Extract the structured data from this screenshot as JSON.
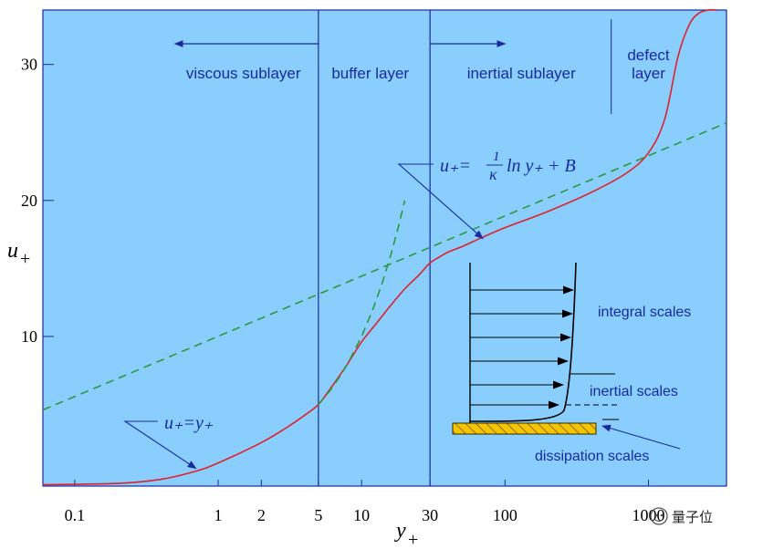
{
  "chart_data": {
    "type": "line",
    "title": "",
    "xlabel": "y+",
    "ylabel": "u+",
    "xscale": "log",
    "xlim": [
      0.06,
      3500
    ],
    "ylim": [
      -1,
      34
    ],
    "x_ticks": [
      {
        "value": 0.1,
        "label": "0.1"
      },
      {
        "value": 1,
        "label": "1"
      },
      {
        "value": 2,
        "label": "2"
      },
      {
        "value": 5,
        "label": "5"
      },
      {
        "value": 10,
        "label": "10"
      },
      {
        "value": 30,
        "label": "30"
      },
      {
        "value": 100,
        "label": "100"
      },
      {
        "value": 1000,
        "label": "1000"
      }
    ],
    "y_ticks": [
      {
        "value": 10,
        "label": "10"
      },
      {
        "value": 20,
        "label": "20"
      },
      {
        "value": 30,
        "label": "30"
      }
    ],
    "region_boundaries": [
      5,
      30
    ],
    "defect_boundary": 550,
    "regions": [
      {
        "name": "viscous sublayer",
        "x": 1.5
      },
      {
        "name": "buffer layer",
        "x": 11.5
      },
      {
        "name": "inertial sublayer",
        "x": 130
      },
      {
        "name": "defect",
        "x": 1000
      },
      {
        "name": "layer",
        "x": 1000
      }
    ],
    "series": [
      {
        "name": "velocity profile",
        "style": "solid",
        "color": "#e0202a",
        "x": [
          0.06,
          0.2,
          0.4,
          0.7,
          1,
          2,
          3,
          4,
          5,
          6,
          7,
          8,
          10,
          13,
          16,
          20,
          25,
          30,
          35,
          40,
          50,
          70,
          100,
          200,
          400,
          700,
          1000,
          1300,
          1600,
          1900,
          2200,
          2600,
          3000
        ],
        "y": [
          -0.9,
          -0.8,
          -0.5,
          0.1,
          0.7,
          2.2,
          3.3,
          4.2,
          5.0,
          6.1,
          7.1,
          8.0,
          9.6,
          11.1,
          12.3,
          13.5,
          14.5,
          15.4,
          15.85,
          16.2,
          16.6,
          17.3,
          18.0,
          19.2,
          20.6,
          22.0,
          23.5,
          26.0,
          30.5,
          32.8,
          33.7,
          34.0,
          34.0
        ]
      },
      {
        "name": "u+ = y+",
        "style": "dashed",
        "color": "#2a9a3c",
        "x": [
          5,
          6,
          7,
          8,
          10,
          12,
          14,
          16,
          18,
          20
        ],
        "y": [
          5,
          6,
          7,
          8,
          10,
          12,
          14,
          16,
          18,
          20
        ]
      },
      {
        "name": "log law",
        "style": "dashed",
        "color": "#2a9a3c",
        "x": [
          0.06,
          3500
        ],
        "y": [
          4.6,
          25.7
        ]
      }
    ],
    "region_arrows": [
      {
        "from": 5,
        "to": 0.5
      },
      {
        "from": 30,
        "to": 100
      }
    ],
    "annotations": {
      "log_law": {
        "lhs": "u₊=",
        "frac_num": "1",
        "frac_den": "κ",
        "rhs": "ln y₊ + B",
        "target": [
          70,
          17.2
        ]
      },
      "linear": {
        "text": "u₊=y₊",
        "target": [
          0.7,
          0.3
        ]
      }
    },
    "inset_labels": [
      "integral scales",
      "inertial scales",
      "dissipation scales"
    ],
    "axis_labels": {
      "x_main": "y",
      "x_sub": "+",
      "y_main": "u",
      "y_sub": "+"
    }
  },
  "watermark": "量子位",
  "colors": {
    "background": "#89cefc",
    "frame": "#1a2a9c",
    "curve": "#e0202a",
    "dash": "#2a9a3c",
    "hatch": "#f5c400"
  }
}
